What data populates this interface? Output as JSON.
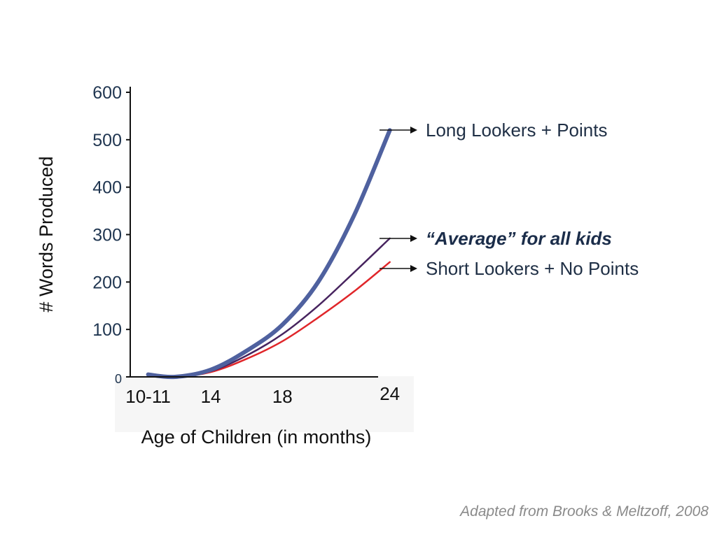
{
  "chart_data": {
    "type": "line",
    "xlabel": "Age of Children (in months)",
    "ylabel": "# Words Produced",
    "ylim": [
      0,
      600
    ],
    "yticks": [
      0,
      100,
      200,
      300,
      400,
      500,
      600
    ],
    "xticks": [
      {
        "label": "10-11",
        "value": 10.5
      },
      {
        "label": "14",
        "value": 14
      },
      {
        "label": "18",
        "value": 18
      },
      {
        "label": "24",
        "value": 24
      }
    ],
    "xlim": [
      9.5,
      25.5
    ],
    "series": [
      {
        "name": "Long Lookers + Points",
        "color": "#4f619f",
        "emphasis": false,
        "points": [
          [
            10.5,
            5
          ],
          [
            12,
            0
          ],
          [
            14,
            15
          ],
          [
            16,
            55
          ],
          [
            18,
            110
          ],
          [
            20,
            200
          ],
          [
            22,
            340
          ],
          [
            24,
            520
          ]
        ]
      },
      {
        "name": "“Average” for all kids",
        "color": "#47245f",
        "emphasis": true,
        "points": [
          [
            10.5,
            5
          ],
          [
            12,
            0
          ],
          [
            14,
            12
          ],
          [
            16,
            45
          ],
          [
            18,
            90
          ],
          [
            20,
            150
          ],
          [
            22,
            220
          ],
          [
            24,
            292
          ]
        ]
      },
      {
        "name": "Short Lookers + No Points",
        "color": "#e0262a",
        "emphasis": false,
        "points": [
          [
            10.5,
            5
          ],
          [
            12,
            0
          ],
          [
            14,
            10
          ],
          [
            16,
            38
          ],
          [
            18,
            75
          ],
          [
            20,
            125
          ],
          [
            22,
            180
          ],
          [
            24,
            242
          ]
        ]
      }
    ],
    "caption": "Adapted from Brooks & Meltzoff, 2008"
  }
}
